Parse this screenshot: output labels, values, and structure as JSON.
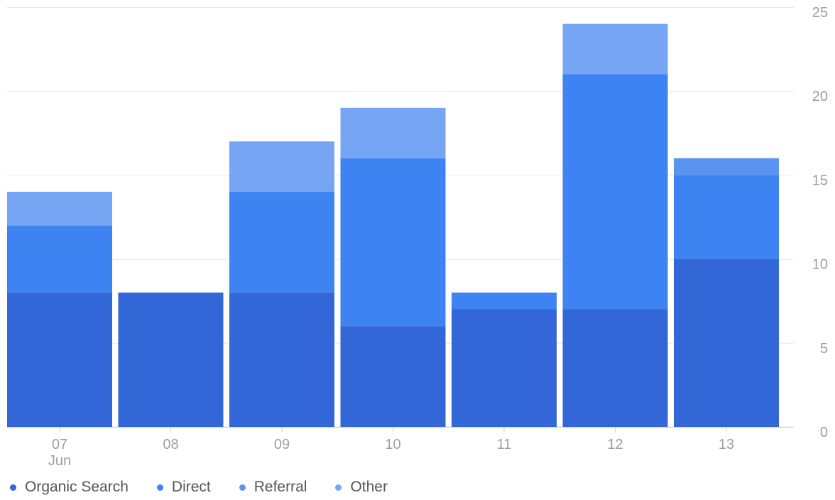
{
  "chart_data": {
    "type": "bar",
    "stacked": true,
    "categories": [
      "07",
      "08",
      "09",
      "10",
      "11",
      "12",
      "13"
    ],
    "category_sublabels": [
      "Jun",
      "",
      "",
      "",
      "",
      "",
      ""
    ],
    "series": [
      {
        "name": "Organic Search",
        "color": "#3366d6",
        "values": [
          8,
          8,
          8,
          6,
          7,
          7,
          10
        ]
      },
      {
        "name": "Direct",
        "color": "#3d84f2",
        "values": [
          4,
          0,
          6,
          10,
          1,
          14,
          5
        ]
      },
      {
        "name": "Referral",
        "color": "#5b94f0",
        "values": [
          0,
          0,
          0,
          0,
          0,
          0,
          1
        ]
      },
      {
        "name": "Other",
        "color": "#75a5f3",
        "values": [
          2,
          0,
          3,
          3,
          0,
          3,
          0
        ]
      }
    ],
    "y_ticks": [
      "0",
      "5",
      "10",
      "15",
      "20",
      "25"
    ],
    "ylim": [
      0,
      25
    ],
    "grid": true,
    "y_axis_position": "right",
    "legend_position": "bottom-left"
  }
}
